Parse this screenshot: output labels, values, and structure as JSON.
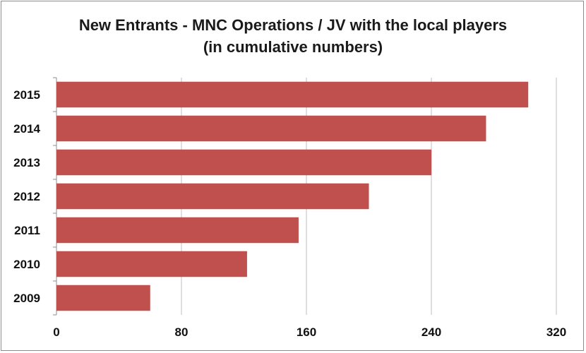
{
  "chart_data": {
    "type": "bar",
    "orientation": "horizontal",
    "title": "New Entrants - MNC Operations / JV with the local players",
    "subtitle": "(in cumulative numbers)",
    "categories": [
      "2015",
      "2014",
      "2013",
      "2012",
      "2011",
      "2010",
      "2009"
    ],
    "values": [
      302,
      275,
      240,
      200,
      155,
      122,
      60
    ],
    "x_ticks": [
      "0",
      "80",
      "160",
      "240",
      "320"
    ],
    "xlim": [
      0,
      320
    ],
    "grid": "vertical",
    "legend": "none",
    "bar_color": "#c0504d",
    "xlabel": "",
    "ylabel": ""
  }
}
